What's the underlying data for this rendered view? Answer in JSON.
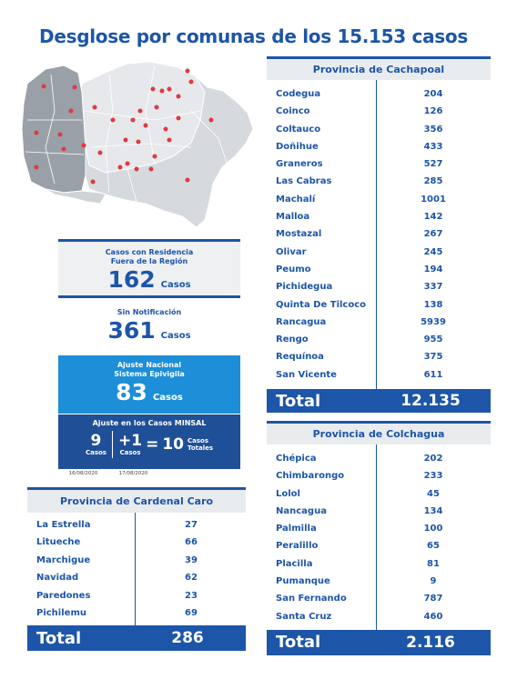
{
  "title": "Desglose por comunas de los 15.153 casos",
  "colors": {
    "primary": "#1d55a8",
    "light_blue": "#1d8ed8",
    "dark_blue": "#1f4f97",
    "gray": "#eef0f2",
    "pin_red": "#e0393e"
  },
  "fuera_region": {
    "label_line1": "Casos con Residencia",
    "label_line2": "Fuera de la Región",
    "value": "162",
    "unit": "Casos"
  },
  "sin_notificacion": {
    "label": "Sin Notificación",
    "value": "361",
    "unit": "Casos"
  },
  "ajuste_nacional": {
    "label_line1": "Ajuste Nacional",
    "label_line2": "Sistema Epivigila",
    "value": "83",
    "unit": "Casos"
  },
  "ajuste_minsal": {
    "label": "Ajuste en los Casos MINSAL",
    "first_value": "9",
    "first_unit": "Casos",
    "second_value": "+1",
    "second_unit": "Casos",
    "equals": "=",
    "total_value": "10",
    "total_label_line1": "Casos",
    "total_label_line2": "Totales",
    "date1": "16/08/2020",
    "date2": "17/08/2020"
  },
  "cachapoal": {
    "title": "Provincia de Cachapoal",
    "rows": [
      {
        "name": "Codegua",
        "value": "204"
      },
      {
        "name": "Coinco",
        "value": "126"
      },
      {
        "name": "Coltauco",
        "value": "356"
      },
      {
        "name": "Doñihue",
        "value": "433"
      },
      {
        "name": "Graneros",
        "value": "527"
      },
      {
        "name": "Las Cabras",
        "value": "285"
      },
      {
        "name": "Machalí",
        "value": "1001"
      },
      {
        "name": "Malloa",
        "value": "142"
      },
      {
        "name": "Mostazal",
        "value": "267"
      },
      {
        "name": "Olivar",
        "value": "245"
      },
      {
        "name": "Peumo",
        "value": "194"
      },
      {
        "name": "Pichidegua",
        "value": "337"
      },
      {
        "name": "Quinta De Tilcoco",
        "value": "138"
      },
      {
        "name": "Rancagua",
        "value": "5939"
      },
      {
        "name": "Rengo",
        "value": "955"
      },
      {
        "name": "Requínoa",
        "value": "375"
      },
      {
        "name": "San Vicente",
        "value": "611"
      }
    ],
    "total_label": "Total",
    "total_value": "12.135"
  },
  "colchagua": {
    "title": "Provincia de Colchagua",
    "rows": [
      {
        "name": "Chépica",
        "value": "202"
      },
      {
        "name": "Chimbarongo",
        "value": "233"
      },
      {
        "name": "Lolol",
        "value": "45"
      },
      {
        "name": "Nancagua",
        "value": "134"
      },
      {
        "name": "Palmilla",
        "value": "100"
      },
      {
        "name": "Peralillo",
        "value": "65"
      },
      {
        "name": "Placilla",
        "value": "81"
      },
      {
        "name": "Pumanque",
        "value": "9"
      },
      {
        "name": "San Fernando",
        "value": "787"
      },
      {
        "name": "Santa Cruz",
        "value": "460"
      }
    ],
    "total_label": "Total",
    "total_value": "2.116"
  },
  "cardenal_caro": {
    "title": "Provincia de Cardenal Caro",
    "rows": [
      {
        "name": "La Estrella",
        "value": "27"
      },
      {
        "name": "Litueche",
        "value": "66"
      },
      {
        "name": "Marchigue",
        "value": "39"
      },
      {
        "name": "Navidad",
        "value": "62"
      },
      {
        "name": "Paredones",
        "value": "23"
      },
      {
        "name": "Pichilemu",
        "value": "69"
      }
    ],
    "total_label": "Total",
    "total_value": "286"
  }
}
